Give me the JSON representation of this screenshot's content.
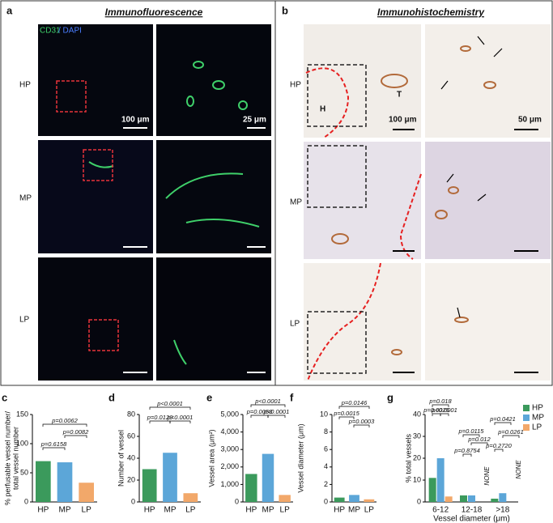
{
  "panels": {
    "a": {
      "label": "a",
      "title": "Immunofluorescence",
      "stain_cd31": "CD31",
      "stain_dapi": "/ DAPI",
      "rows": [
        "HP",
        "MP",
        "LP"
      ],
      "scale_left": "100 μm",
      "scale_right": "25 μm"
    },
    "b": {
      "label": "b",
      "title": "Immunohistochemistry",
      "rows": [
        "HP",
        "MP",
        "LP"
      ],
      "scale_left": "100 μm",
      "scale_right": "50 μm",
      "tissue_h": "H",
      "tissue_t": "T"
    }
  },
  "chart_data": [
    {
      "type": "bar",
      "label": "c",
      "ylabel": [
        "% perfusable vessel number/",
        "total vessel number"
      ],
      "categories": [
        "HP",
        "MP",
        "LP"
      ],
      "values": [
        70,
        68,
        33
      ],
      "colors": [
        "#3b9a5c",
        "#5ca6d8",
        "#f2a86a"
      ],
      "ylim": [
        0,
        150
      ],
      "yticks": [
        0,
        50,
        100,
        150
      ],
      "annotations": [
        "p=0.0062",
        "p=0.0082",
        "p=0.6158"
      ]
    },
    {
      "type": "bar",
      "label": "d",
      "ylabel": [
        "Number of vessel"
      ],
      "categories": [
        "HP",
        "MP",
        "LP"
      ],
      "values": [
        30,
        45,
        8
      ],
      "colors": [
        "#3b9a5c",
        "#5ca6d8",
        "#f2a86a"
      ],
      "ylim": [
        0,
        80
      ],
      "yticks": [
        0,
        20,
        40,
        60,
        80
      ],
      "annotations": [
        "p<0.0001",
        "p=0.0120",
        "p<0.0001"
      ]
    },
    {
      "type": "bar",
      "label": "e",
      "ylabel": [
        "Vessel area (μm²)"
      ],
      "categories": [
        "HP",
        "MP",
        "LP"
      ],
      "values": [
        1600,
        2750,
        400
      ],
      "colors": [
        "#3b9a5c",
        "#5ca6d8",
        "#f2a86a"
      ],
      "ylim": [
        0,
        5000
      ],
      "yticks": [
        0,
        {
          "value": 1000,
          "label": "1,000"
        },
        {
          "value": 2000,
          "label": "2,000"
        },
        {
          "value": 3000,
          "label": "3,000"
        },
        {
          "value": 4000,
          "label": "4,000"
        },
        {
          "value": 5000,
          "label": "5,000"
        }
      ],
      "annotations": [
        "p<0.0001",
        "p=0.0058",
        "p<0.0001"
      ]
    },
    {
      "type": "bar",
      "label": "f",
      "ylabel": [
        "Vessel diameter (μm)"
      ],
      "categories": [
        "HP",
        "MP",
        "LP"
      ],
      "values": [
        0.5,
        0.8,
        0.3
      ],
      "colors": [
        "#3b9a5c",
        "#5ca6d8",
        "#f2a86a"
      ],
      "ylim": [
        0,
        10
      ],
      "yticks": [
        0,
        2,
        4,
        6,
        8,
        10
      ],
      "annotations": [
        "p=0.0146",
        "p=0.0015",
        "p=0.0003"
      ]
    },
    {
      "type": "grouped",
      "label": "g",
      "ylabel": [
        "% total vessels"
      ],
      "xlabel": "Vessel diameter (μm)",
      "categories": [
        "6-12",
        "12-18",
        ">18"
      ],
      "series": [
        {
          "name": "HP",
          "color": "#3b9a5c",
          "values": [
            11,
            3,
            1.5
          ]
        },
        {
          "name": "MP",
          "color": "#5ca6d8",
          "values": [
            20,
            3,
            4
          ]
        },
        {
          "name": "LP",
          "color": "#f2a86a",
          "values": [
            2.5,
            null,
            null
          ]
        }
      ],
      "ylim": [
        0,
        40
      ],
      "yticks": [
        0,
        10,
        20,
        30,
        40
      ],
      "annotations": [
        "p=0.018",
        "p=0.0025",
        "p<0.0001",
        "p=0.0115",
        "p=0.012",
        "p=0.8754",
        "p=0.0421",
        "p=0.0261",
        "p=0.2720"
      ],
      "none_labels": [
        "NONE",
        "NONE"
      ]
    }
  ]
}
